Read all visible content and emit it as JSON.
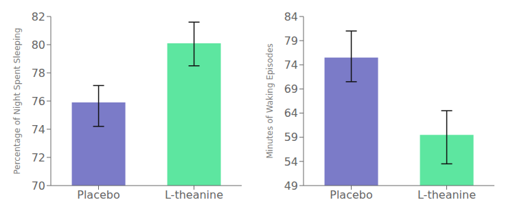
{
  "chart_data": [
    {
      "type": "bar",
      "ylabel": "Percentage of Night Spent Sleeping",
      "categories": [
        "Placebo",
        "L-theanine"
      ],
      "values": [
        75.9,
        80.1
      ],
      "errors_upper": [
        1.2,
        1.5
      ],
      "errors_lower": [
        1.7,
        1.6
      ],
      "colors": [
        "#7b7bc8",
        "#5de6a0"
      ],
      "ylim": [
        70,
        82
      ],
      "yticks": [
        70,
        72,
        74,
        76,
        78,
        80,
        82
      ],
      "grid": false
    },
    {
      "type": "bar",
      "ylabel": "Minutes of Waking Episodes",
      "categories": [
        "Placebo",
        "L-theanine"
      ],
      "values": [
        75.5,
        59.5
      ],
      "errors_upper": [
        5.5,
        5.0
      ],
      "errors_lower": [
        5.0,
        6.0
      ],
      "colors": [
        "#7b7bc8",
        "#5de6a0"
      ],
      "ylim": [
        49,
        84
      ],
      "yticks": [
        49,
        54,
        59,
        64,
        69,
        74,
        79,
        84
      ],
      "grid": false
    }
  ]
}
